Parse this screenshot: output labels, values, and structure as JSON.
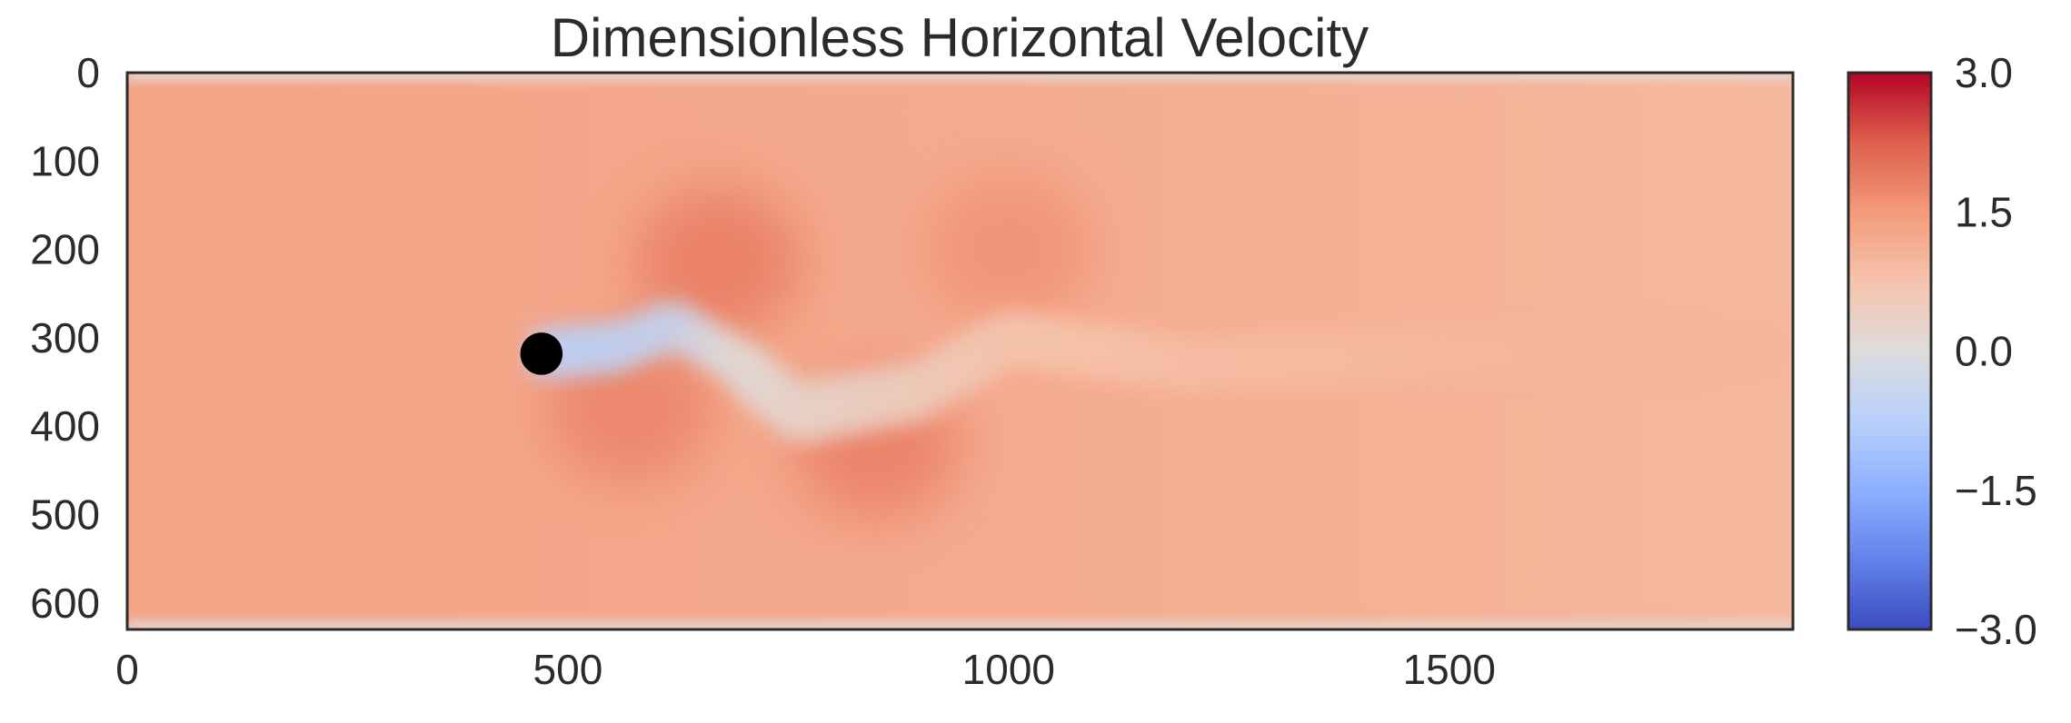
{
  "chart_data": {
    "type": "heatmap",
    "title": "Dimensionless Horizontal Velocity",
    "xlabel": "",
    "ylabel": "",
    "xlim": [
      0,
      1890
    ],
    "ylim": [
      630,
      0
    ],
    "x_ticks": [
      0,
      500,
      1000,
      1500
    ],
    "y_ticks": [
      0,
      100,
      200,
      300,
      400,
      500,
      600
    ],
    "grid": false,
    "colormap": "coolwarm",
    "colorbar": {
      "range": [
        -3.0,
        3.0
      ],
      "ticks": [
        "3.0",
        "1.5",
        "0.0",
        "−1.5",
        "−3.0"
      ],
      "tick_values": [
        3.0,
        1.5,
        0.0,
        -1.5,
        -3.0
      ],
      "location": "right"
    },
    "field": {
      "freestream_value": 1.3,
      "wall_value": 0.35,
      "obstacle": {
        "shape": "circle",
        "center_x": 470,
        "center_y": 318,
        "radius": 24,
        "color": "#000000"
      },
      "wake_centerline": [
        {
          "x": 470,
          "y": 318,
          "value": -0.75
        },
        {
          "x": 560,
          "y": 310,
          "value": -0.65
        },
        {
          "x": 620,
          "y": 285,
          "value": -0.55
        },
        {
          "x": 680,
          "y": 320,
          "value": 0.0
        },
        {
          "x": 760,
          "y": 385,
          "value": 0.25
        },
        {
          "x": 900,
          "y": 360,
          "value": 0.5
        },
        {
          "x": 1000,
          "y": 300,
          "value": 0.7
        },
        {
          "x": 1200,
          "y": 330,
          "value": 0.85
        },
        {
          "x": 1600,
          "y": 315,
          "value": 1.0
        },
        {
          "x": 1880,
          "y": 315,
          "value": 1.05
        }
      ],
      "high_speed_lobes": [
        {
          "x": 670,
          "y": 215,
          "value": 1.9
        },
        {
          "x": 570,
          "y": 380,
          "value": 1.8
        },
        {
          "x": 850,
          "y": 420,
          "value": 1.85
        },
        {
          "x": 1000,
          "y": 200,
          "value": 1.6
        }
      ]
    }
  }
}
